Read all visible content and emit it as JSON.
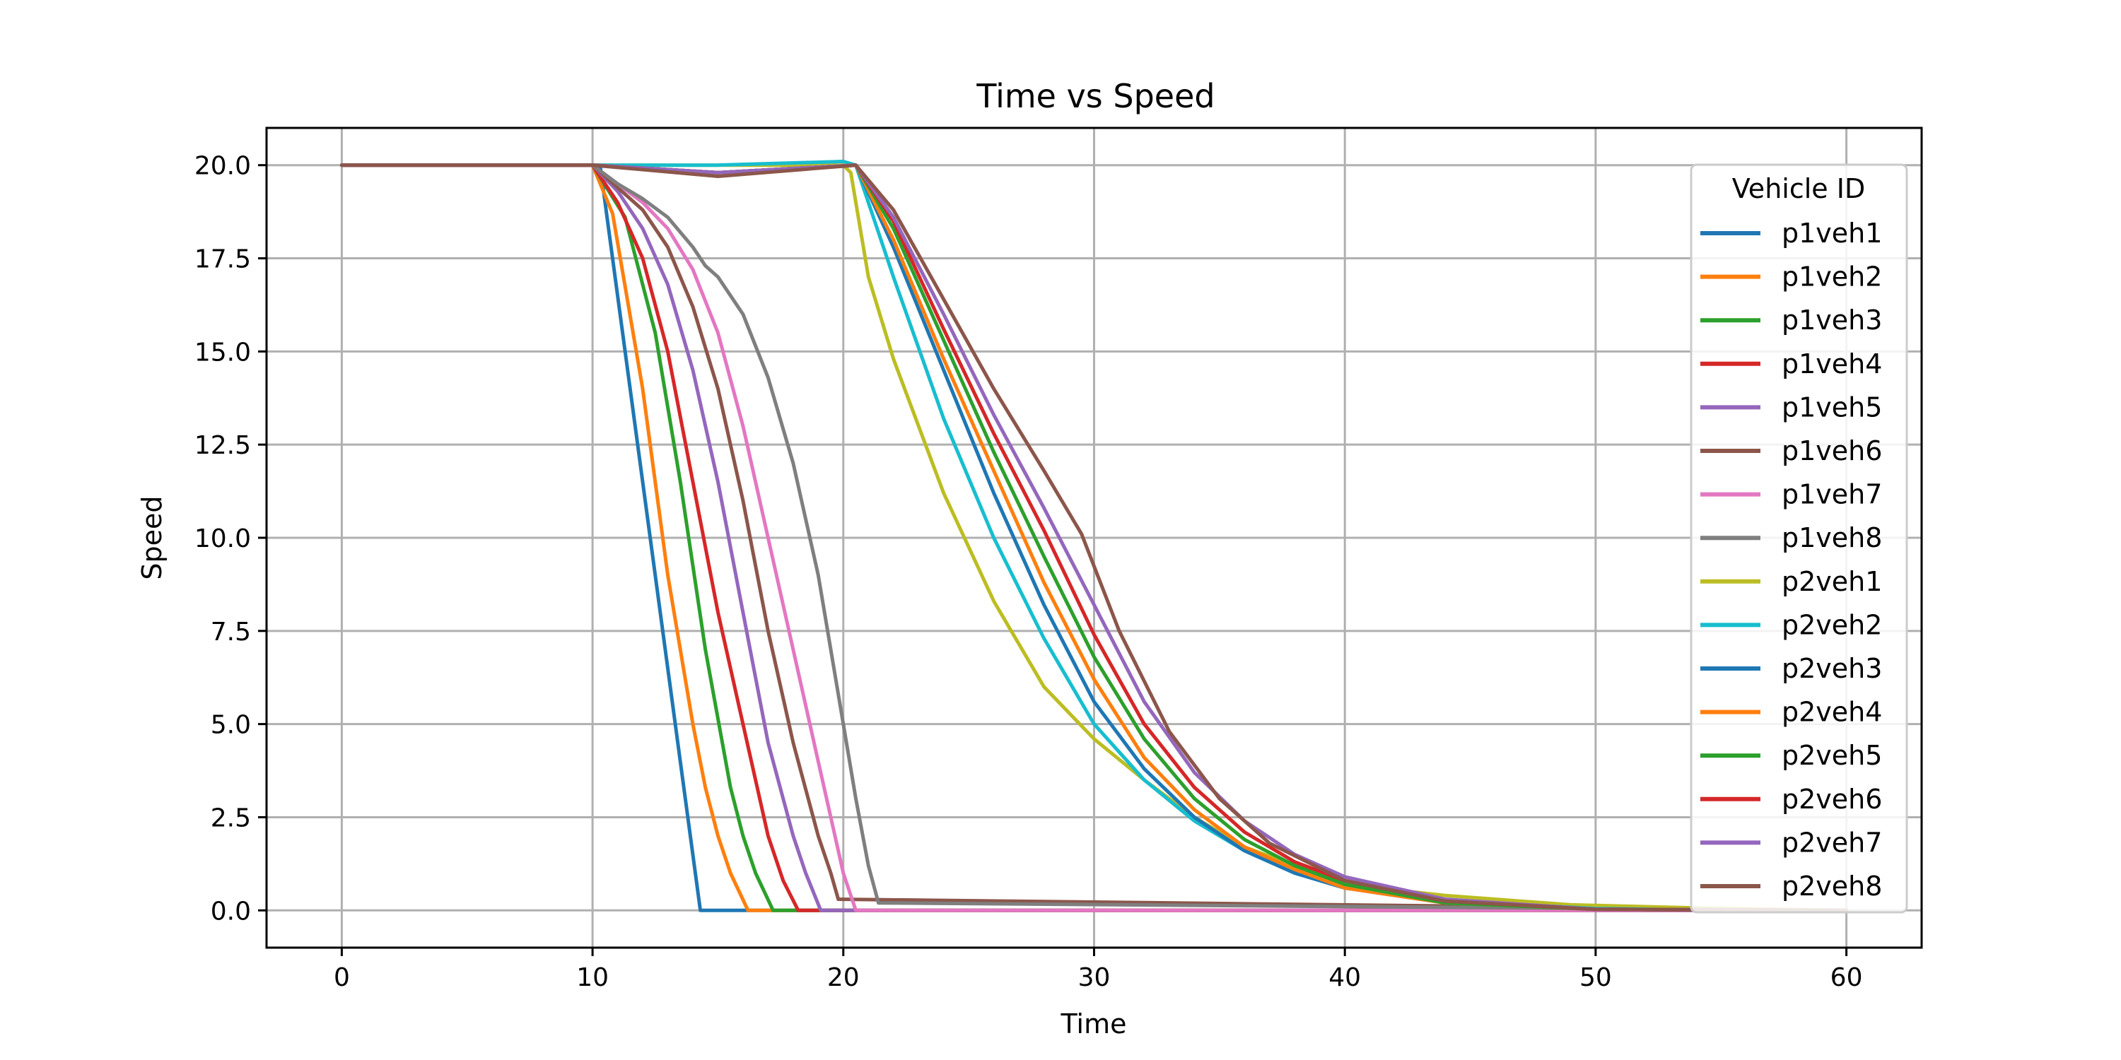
{
  "chart_data": {
    "type": "line",
    "title": "Time vs Speed",
    "xlabel": "Time",
    "ylabel": "Speed",
    "xlim": [
      -3,
      63
    ],
    "ylim": [
      -1,
      21
    ],
    "xticks": [
      0,
      10,
      20,
      30,
      40,
      50,
      60
    ],
    "xtick_labels": [
      "0",
      "10",
      "20",
      "30",
      "40",
      "50",
      "60"
    ],
    "yticks": [
      0,
      2.5,
      5,
      7.5,
      10,
      12.5,
      15,
      17.5,
      20
    ],
    "ytick_labels": [
      "0.0",
      "2.5",
      "5.0",
      "7.5",
      "10.0",
      "12.5",
      "15.0",
      "17.5",
      "20.0"
    ],
    "grid": true,
    "legend": {
      "title": "Vehicle ID",
      "placement": "upper-right"
    },
    "series": [
      {
        "name": "p1veh1",
        "color": "#1f77b4",
        "x": [
          0,
          10,
          10.3,
          14.3,
          60
        ],
        "y": [
          20,
          20,
          20,
          0,
          0
        ]
      },
      {
        "name": "p1veh2",
        "color": "#ff7f0e",
        "x": [
          0,
          10,
          10.8,
          12,
          13,
          14,
          14.5,
          15,
          15.5,
          16.2,
          60
        ],
        "y": [
          20,
          20,
          18.7,
          14,
          9,
          5,
          3.3,
          2,
          1,
          0,
          0
        ]
      },
      {
        "name": "p1veh3",
        "color": "#2ca02c",
        "x": [
          0,
          10,
          11.3,
          12.5,
          13.5,
          14.5,
          15.5,
          16,
          16.5,
          17.2,
          60
        ],
        "y": [
          20,
          20,
          18.6,
          15.5,
          11.5,
          7,
          3.3,
          2,
          1,
          0,
          0
        ]
      },
      {
        "name": "p1veh4",
        "color": "#d62728",
        "x": [
          0,
          10,
          11,
          12,
          13,
          14,
          15,
          16,
          17,
          17.6,
          18.2,
          60
        ],
        "y": [
          20,
          20,
          19,
          17.5,
          15,
          11.5,
          8,
          5,
          2,
          0.8,
          0,
          0
        ]
      },
      {
        "name": "p1veh5",
        "color": "#9467bd",
        "x": [
          0,
          10,
          11,
          12,
          13,
          14,
          15,
          16,
          17,
          18,
          18.5,
          19.1,
          60
        ],
        "y": [
          20,
          20,
          19.3,
          18.3,
          16.8,
          14.5,
          11.5,
          8,
          4.5,
          2,
          1,
          0,
          0
        ]
      },
      {
        "name": "p1veh6",
        "color": "#8c564b",
        "x": [
          0,
          10,
          11,
          12,
          13,
          14,
          15,
          16,
          17,
          18,
          19,
          19.5,
          19.8,
          60
        ],
        "y": [
          20,
          20,
          19.4,
          18.8,
          17.8,
          16.2,
          14,
          11,
          7.5,
          4.5,
          2,
          1,
          0.3,
          0
        ]
      },
      {
        "name": "p1veh7",
        "color": "#e377c2",
        "x": [
          0,
          10,
          11,
          12,
          13,
          14,
          15,
          16,
          17,
          18,
          19,
          19.5,
          20,
          20.5,
          60
        ],
        "y": [
          20,
          20,
          19.5,
          19,
          18.3,
          17.2,
          15.5,
          13,
          10,
          7,
          4,
          2.5,
          1,
          0,
          0
        ]
      },
      {
        "name": "p1veh8",
        "color": "#7f7f7f",
        "x": [
          0,
          10,
          11,
          12,
          13,
          14,
          14.5,
          15,
          16,
          17,
          18,
          19,
          20,
          20.5,
          21,
          21.4,
          60
        ],
        "y": [
          20,
          20,
          19.5,
          19.1,
          18.6,
          17.8,
          17.3,
          17,
          16,
          14.3,
          12,
          9,
          5,
          3,
          1.2,
          0.2,
          0
        ]
      },
      {
        "name": "p2veh1",
        "color": "#bcbd22",
        "x": [
          0,
          10,
          15,
          20,
          20.3,
          21,
          22,
          24,
          26,
          28,
          30,
          32,
          34,
          36,
          38,
          40,
          44,
          49,
          55,
          60
        ],
        "y": [
          20,
          20,
          20,
          20,
          19.8,
          17,
          14.8,
          11.2,
          8.3,
          6,
          4.6,
          3.5,
          2.5,
          1.7,
          1.2,
          0.7,
          0.4,
          0.15,
          0.05,
          0
        ]
      },
      {
        "name": "p2veh2",
        "color": "#17becf",
        "x": [
          0,
          10,
          15,
          20,
          20.5,
          22,
          24,
          26,
          28,
          30,
          32,
          34,
          36,
          38,
          40,
          44,
          50,
          55,
          60
        ],
        "y": [
          20,
          20,
          20,
          20.1,
          20,
          17,
          13.2,
          10,
          7.3,
          5,
          3.5,
          2.4,
          1.6,
          1,
          0.6,
          0.25,
          0.05,
          0,
          0
        ]
      },
      {
        "name": "p2veh3",
        "color": "#1f77b4",
        "x": [
          0,
          10,
          15,
          20.5,
          22,
          24,
          26,
          28,
          30,
          32,
          34,
          36,
          38,
          40,
          44,
          50,
          60
        ],
        "y": [
          20,
          20,
          19.8,
          20,
          17.8,
          14.5,
          11.2,
          8.2,
          5.6,
          3.8,
          2.5,
          1.6,
          1,
          0.6,
          0.2,
          0.03,
          0
        ]
      },
      {
        "name": "p2veh4",
        "color": "#ff7f0e",
        "x": [
          0,
          10,
          15,
          20.5,
          22,
          24,
          26,
          28,
          30,
          32,
          34,
          36,
          38,
          40,
          44,
          50,
          60
        ],
        "y": [
          20,
          20,
          19.8,
          20,
          18,
          14.8,
          11.8,
          8.8,
          6.2,
          4.1,
          2.7,
          1.7,
          1.1,
          0.6,
          0.2,
          0.03,
          0
        ]
      },
      {
        "name": "p2veh5",
        "color": "#2ca02c",
        "x": [
          0,
          10,
          15,
          20.5,
          22,
          24,
          26,
          28,
          30,
          32,
          34,
          36,
          38,
          40,
          44,
          50,
          60
        ],
        "y": [
          20,
          20,
          19.8,
          20,
          18.3,
          15.3,
          12.3,
          9.5,
          6.8,
          4.6,
          3,
          1.9,
          1.2,
          0.7,
          0.2,
          0.03,
          0
        ]
      },
      {
        "name": "p2veh6",
        "color": "#d62728",
        "x": [
          0,
          10,
          15,
          20.5,
          22,
          24,
          26,
          28,
          30,
          32,
          34,
          36,
          38,
          40,
          44,
          50,
          60
        ],
        "y": [
          20,
          20,
          19.8,
          20,
          18.5,
          15.6,
          12.8,
          10.2,
          7.4,
          5,
          3.3,
          2.1,
          1.3,
          0.8,
          0.25,
          0.03,
          0
        ]
      },
      {
        "name": "p2veh7",
        "color": "#9467bd",
        "x": [
          0,
          10,
          15,
          20.5,
          22,
          24,
          26,
          28,
          30,
          32,
          34,
          36,
          38,
          40,
          44,
          50,
          60
        ],
        "y": [
          20,
          20,
          19.8,
          20,
          18.6,
          16,
          13.3,
          10.8,
          8.2,
          5.6,
          3.7,
          2.4,
          1.5,
          0.9,
          0.3,
          0.03,
          0
        ]
      },
      {
        "name": "p2veh8",
        "color": "#8c564b",
        "x": [
          0,
          10,
          15,
          20.5,
          22,
          24,
          26,
          28,
          29.5,
          31,
          33,
          35,
          37,
          40,
          44,
          50,
          60
        ],
        "y": [
          20,
          20,
          19.7,
          20,
          18.8,
          16.4,
          14,
          11.8,
          10.1,
          7.5,
          4.8,
          3,
          1.8,
          0.8,
          0.25,
          0.03,
          0
        ]
      }
    ]
  }
}
